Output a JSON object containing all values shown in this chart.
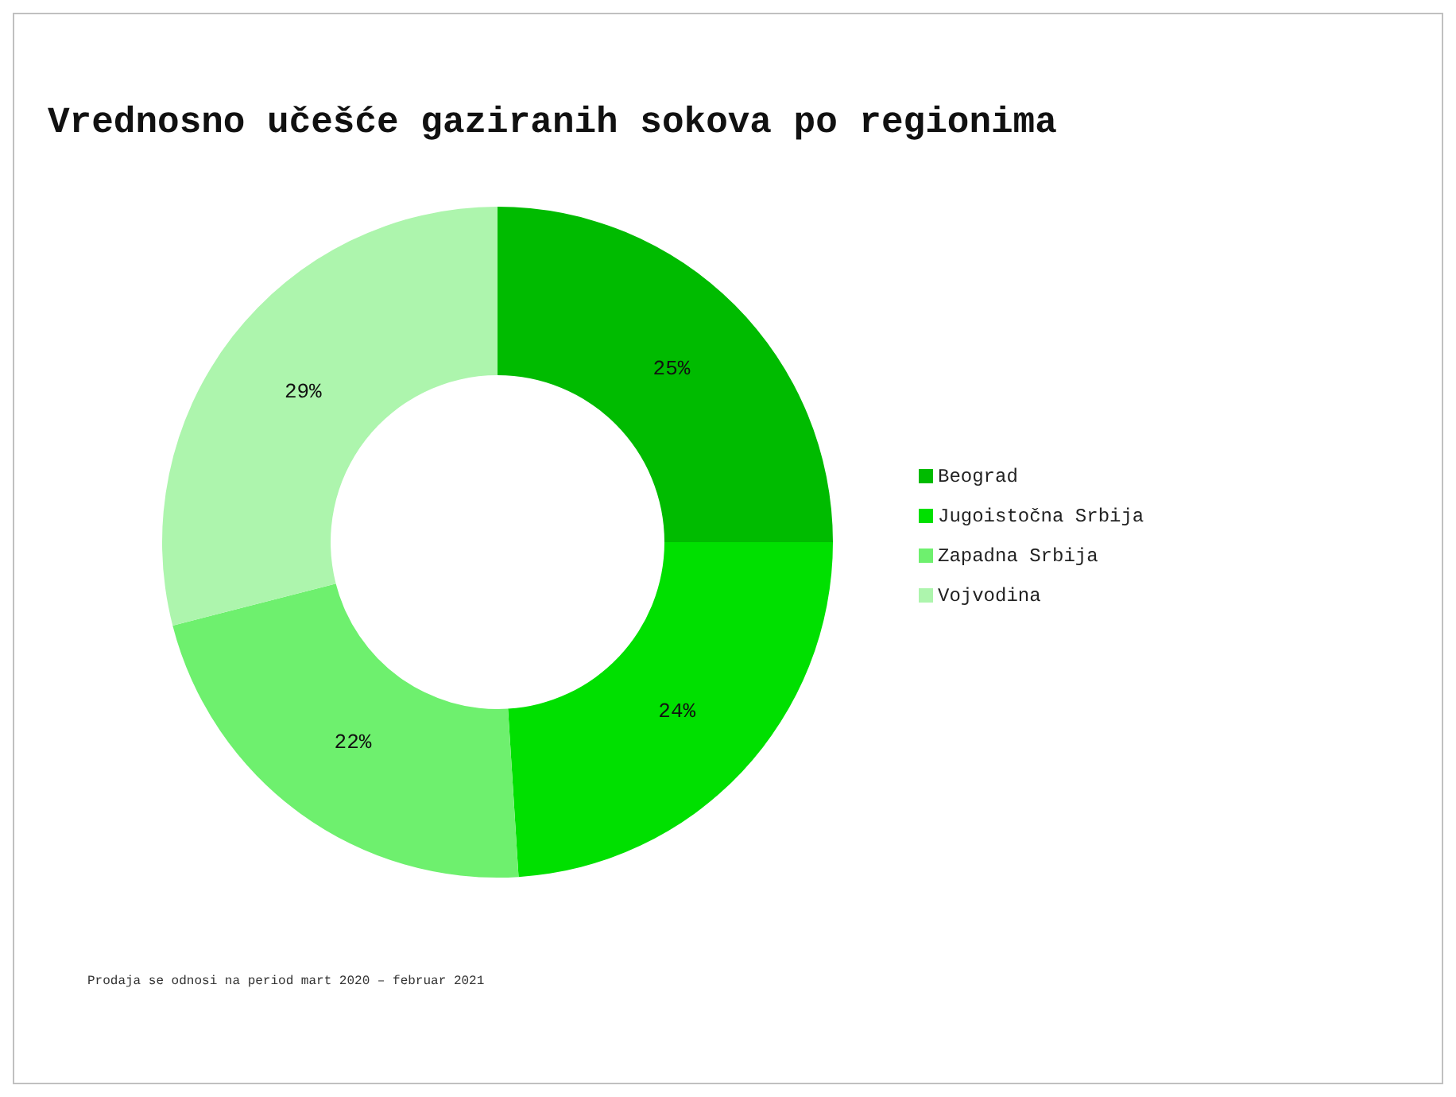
{
  "chart_data": {
    "type": "donut",
    "title": "Vrednosno učešće gaziranih sokova po regionima",
    "categories": [
      "Beograd",
      "Jugoistočna Srbija",
      "Zapadna Srbija",
      "Vojvodina"
    ],
    "values": [
      25,
      24,
      22,
      29
    ],
    "colors": [
      "#00bb00",
      "#00e000",
      "#6ef06e",
      "#adf5ad"
    ],
    "value_labels": [
      "25%",
      "24%",
      "22%",
      "29%"
    ],
    "legend": "right",
    "annotations": [
      "Prodaja se odnosi na period mart 2020 – februar 2021"
    ]
  }
}
